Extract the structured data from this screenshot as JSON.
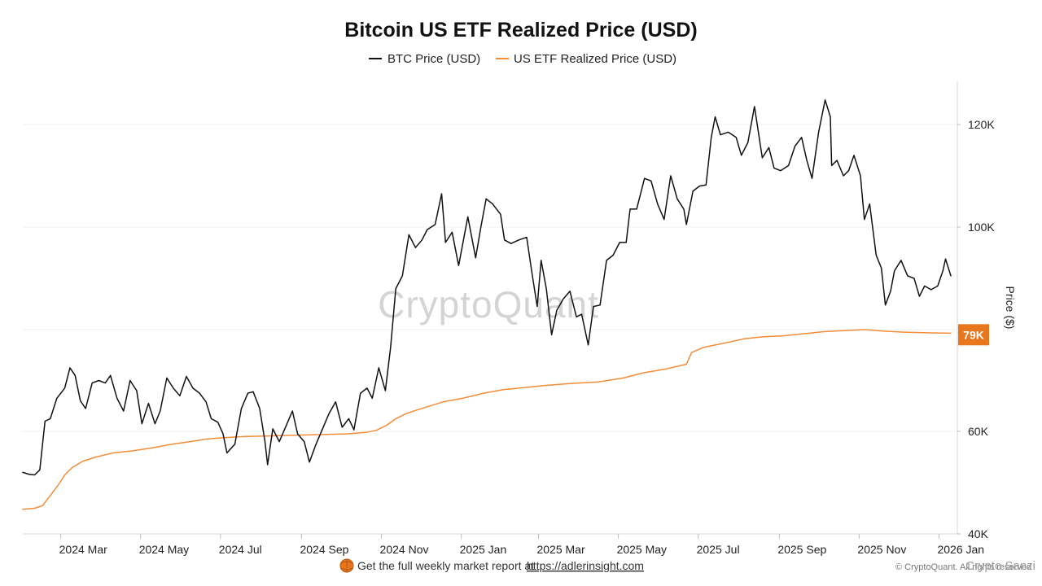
{
  "chart_data": {
    "type": "line",
    "title": "Bitcoin US ETF Realized Price (USD)",
    "xlabel": "",
    "ylabel": "Price ($)",
    "ylim": [
      40000,
      128000
    ],
    "yticks": [
      {
        "value": 40000,
        "label": "40K"
      },
      {
        "value": 60000,
        "label": "60K"
      },
      {
        "value": 100000,
        "label": "100K"
      },
      {
        "value": 120000,
        "label": "120K"
      }
    ],
    "xlim": [
      "2024-02-01",
      "2026-01-15"
    ],
    "xticks": [
      {
        "date": "2024-03-01",
        "label": "2024 Mar"
      },
      {
        "date": "2024-05-01",
        "label": "2024 May"
      },
      {
        "date": "2024-07-01",
        "label": "2024 Jul"
      },
      {
        "date": "2024-09-01",
        "label": "2024 Sep"
      },
      {
        "date": "2024-11-01",
        "label": "2024 Nov"
      },
      {
        "date": "2025-01-01",
        "label": "2025 Jan"
      },
      {
        "date": "2025-03-01",
        "label": "2025 Mar"
      },
      {
        "date": "2025-05-01",
        "label": "2025 May"
      },
      {
        "date": "2025-07-01",
        "label": "2025 Jul"
      },
      {
        "date": "2025-09-01",
        "label": "2025 Sep"
      },
      {
        "date": "2025-11-01",
        "label": "2025 Nov"
      },
      {
        "date": "2026-01-01",
        "label": "2026 Jan"
      }
    ],
    "grid": true,
    "legend_position": "top-center",
    "current_value_label": "79K",
    "current_value": 79000,
    "series": [
      {
        "name": "BTC Price (USD)",
        "color": "#111111",
        "points": [
          [
            "2024-02-01",
            52000
          ],
          [
            "2024-02-06",
            51600
          ],
          [
            "2024-02-10",
            51500
          ],
          [
            "2024-02-14",
            52500
          ],
          [
            "2024-02-18",
            62000
          ],
          [
            "2024-02-22",
            62500
          ],
          [
            "2024-02-27",
            66500
          ],
          [
            "2024-03-04",
            68500
          ],
          [
            "2024-03-08",
            72500
          ],
          [
            "2024-03-12",
            71000
          ],
          [
            "2024-03-16",
            66000
          ],
          [
            "2024-03-20",
            64500
          ],
          [
            "2024-03-25",
            69500
          ],
          [
            "2024-03-30",
            70000
          ],
          [
            "2024-04-04",
            69500
          ],
          [
            "2024-04-08",
            71000
          ],
          [
            "2024-04-13",
            66500
          ],
          [
            "2024-04-18",
            64000
          ],
          [
            "2024-04-23",
            70000
          ],
          [
            "2024-04-28",
            68000
          ],
          [
            "2024-05-02",
            61500
          ],
          [
            "2024-05-07",
            65500
          ],
          [
            "2024-05-12",
            61500
          ],
          [
            "2024-05-16",
            64000
          ],
          [
            "2024-05-21",
            70500
          ],
          [
            "2024-05-26",
            68500
          ],
          [
            "2024-05-31",
            67000
          ],
          [
            "2024-06-05",
            70800
          ],
          [
            "2024-06-10",
            68500
          ],
          [
            "2024-06-15",
            67500
          ],
          [
            "2024-06-20",
            65800
          ],
          [
            "2024-06-24",
            62500
          ],
          [
            "2024-06-29",
            61800
          ],
          [
            "2024-07-03",
            59500
          ],
          [
            "2024-07-06",
            55800
          ],
          [
            "2024-07-12",
            57500
          ],
          [
            "2024-07-17",
            64500
          ],
          [
            "2024-07-22",
            67500
          ],
          [
            "2024-07-26",
            67800
          ],
          [
            "2024-07-31",
            64500
          ],
          [
            "2024-08-04",
            58000
          ],
          [
            "2024-08-06",
            53500
          ],
          [
            "2024-08-10",
            60500
          ],
          [
            "2024-08-15",
            58000
          ],
          [
            "2024-08-20",
            61000
          ],
          [
            "2024-08-25",
            64000
          ],
          [
            "2024-08-29",
            59500
          ],
          [
            "2024-09-03",
            58000
          ],
          [
            "2024-09-07",
            54000
          ],
          [
            "2024-09-12",
            57500
          ],
          [
            "2024-09-17",
            60500
          ],
          [
            "2024-09-22",
            63500
          ],
          [
            "2024-09-27",
            65800
          ],
          [
            "2024-10-02",
            60800
          ],
          [
            "2024-10-07",
            62500
          ],
          [
            "2024-10-11",
            60300
          ],
          [
            "2024-10-16",
            67500
          ],
          [
            "2024-10-21",
            68500
          ],
          [
            "2024-10-25",
            66500
          ],
          [
            "2024-10-30",
            72500
          ],
          [
            "2024-11-04",
            68000
          ],
          [
            "2024-11-08",
            76500
          ],
          [
            "2024-11-12",
            88000
          ],
          [
            "2024-11-17",
            90500
          ],
          [
            "2024-11-22",
            98500
          ],
          [
            "2024-11-27",
            96000
          ],
          [
            "2024-12-02",
            97500
          ],
          [
            "2024-12-06",
            99500
          ],
          [
            "2024-12-12",
            100500
          ],
          [
            "2024-12-17",
            106500
          ],
          [
            "2024-12-20",
            97000
          ],
          [
            "2024-12-25",
            99000
          ],
          [
            "2024-12-30",
            92500
          ],
          [
            "2025-01-06",
            102000
          ],
          [
            "2025-01-12",
            94000
          ],
          [
            "2025-01-16",
            100000
          ],
          [
            "2025-01-20",
            105500
          ],
          [
            "2025-01-25",
            104500
          ],
          [
            "2025-01-31",
            102500
          ],
          [
            "2025-02-03",
            97500
          ],
          [
            "2025-02-08",
            96800
          ],
          [
            "2025-02-14",
            97500
          ],
          [
            "2025-02-20",
            98000
          ],
          [
            "2025-02-24",
            91000
          ],
          [
            "2025-02-28",
            84500
          ],
          [
            "2025-03-03",
            93500
          ],
          [
            "2025-03-07",
            88000
          ],
          [
            "2025-03-11",
            79000
          ],
          [
            "2025-03-15",
            83800
          ],
          [
            "2025-03-20",
            86000
          ],
          [
            "2025-03-25",
            87500
          ],
          [
            "2025-03-30",
            82500
          ],
          [
            "2025-04-03",
            83000
          ],
          [
            "2025-04-08",
            77000
          ],
          [
            "2025-04-12",
            84500
          ],
          [
            "2025-04-17",
            84800
          ],
          [
            "2025-04-22",
            93500
          ],
          [
            "2025-04-27",
            94500
          ],
          [
            "2025-05-02",
            97000
          ],
          [
            "2025-05-07",
            97000
          ],
          [
            "2025-05-10",
            103500
          ],
          [
            "2025-05-15",
            103500
          ],
          [
            "2025-05-21",
            109500
          ],
          [
            "2025-05-26",
            109000
          ],
          [
            "2025-05-31",
            104500
          ],
          [
            "2025-06-05",
            101500
          ],
          [
            "2025-06-10",
            110000
          ],
          [
            "2025-06-15",
            105500
          ],
          [
            "2025-06-20",
            103500
          ],
          [
            "2025-06-22",
            100500
          ],
          [
            "2025-06-27",
            107000
          ],
          [
            "2025-07-02",
            108000
          ],
          [
            "2025-07-07",
            108200
          ],
          [
            "2025-07-11",
            117500
          ],
          [
            "2025-07-14",
            121500
          ],
          [
            "2025-07-18",
            118000
          ],
          [
            "2025-07-24",
            118500
          ],
          [
            "2025-07-30",
            117500
          ],
          [
            "2025-08-03",
            114000
          ],
          [
            "2025-08-08",
            116500
          ],
          [
            "2025-08-13",
            123500
          ],
          [
            "2025-08-19",
            113500
          ],
          [
            "2025-08-24",
            115500
          ],
          [
            "2025-08-28",
            111500
          ],
          [
            "2025-09-02",
            111000
          ],
          [
            "2025-09-08",
            112000
          ],
          [
            "2025-09-13",
            115800
          ],
          [
            "2025-09-18",
            117500
          ],
          [
            "2025-09-22",
            113000
          ],
          [
            "2025-09-26",
            109500
          ],
          [
            "2025-10-01",
            118500
          ],
          [
            "2025-10-06",
            124800
          ],
          [
            "2025-10-10",
            121500
          ],
          [
            "2025-10-11",
            112000
          ],
          [
            "2025-10-15",
            113000
          ],
          [
            "2025-10-20",
            110000
          ],
          [
            "2025-10-24",
            111000
          ],
          [
            "2025-10-28",
            114000
          ],
          [
            "2025-11-02",
            110000
          ],
          [
            "2025-11-05",
            101500
          ],
          [
            "2025-11-09",
            104500
          ],
          [
            "2025-11-14",
            94500
          ],
          [
            "2025-11-18",
            92000
          ],
          [
            "2025-11-21",
            84800
          ],
          [
            "2025-11-25",
            87500
          ],
          [
            "2025-11-28",
            91500
          ],
          [
            "2025-12-03",
            93500
          ],
          [
            "2025-12-08",
            90500
          ],
          [
            "2025-12-13",
            90000
          ],
          [
            "2025-12-17",
            86500
          ],
          [
            "2025-12-21",
            88500
          ],
          [
            "2025-12-26",
            87800
          ],
          [
            "2025-12-31",
            88500
          ],
          [
            "2026-01-04",
            91500
          ],
          [
            "2026-01-06",
            93800
          ],
          [
            "2026-01-10",
            90500
          ]
        ]
      },
      {
        "name": "US ETF Realized Price (USD)",
        "color": "#f28c38",
        "points": [
          [
            "2024-02-01",
            44800
          ],
          [
            "2024-02-10",
            45000
          ],
          [
            "2024-02-16",
            45500
          ],
          [
            "2024-02-22",
            47500
          ],
          [
            "2024-02-28",
            49500
          ],
          [
            "2024-03-04",
            51500
          ],
          [
            "2024-03-10",
            53000
          ],
          [
            "2024-03-18",
            54200
          ],
          [
            "2024-03-28",
            55000
          ],
          [
            "2024-04-10",
            55800
          ],
          [
            "2024-04-25",
            56200
          ],
          [
            "2024-05-10",
            56800
          ],
          [
            "2024-05-25",
            57500
          ],
          [
            "2024-06-08",
            58000
          ],
          [
            "2024-06-20",
            58500
          ],
          [
            "2024-07-05",
            58800
          ],
          [
            "2024-07-20",
            59000
          ],
          [
            "2024-08-05",
            59100
          ],
          [
            "2024-08-20",
            59200
          ],
          [
            "2024-09-05",
            59300
          ],
          [
            "2024-09-20",
            59400
          ],
          [
            "2024-10-05",
            59500
          ],
          [
            "2024-10-20",
            59800
          ],
          [
            "2024-10-28",
            60200
          ],
          [
            "2024-11-05",
            61200
          ],
          [
            "2024-11-12",
            62500
          ],
          [
            "2024-11-20",
            63500
          ],
          [
            "2024-11-28",
            64200
          ],
          [
            "2024-12-08",
            65000
          ],
          [
            "2024-12-18",
            65800
          ],
          [
            "2025-01-02",
            66500
          ],
          [
            "2025-01-18",
            67500
          ],
          [
            "2025-02-02",
            68200
          ],
          [
            "2025-02-18",
            68600
          ],
          [
            "2025-03-05",
            69000
          ],
          [
            "2025-03-25",
            69400
          ],
          [
            "2025-04-15",
            69700
          ],
          [
            "2025-05-05",
            70500
          ],
          [
            "2025-05-20",
            71500
          ],
          [
            "2025-06-05",
            72200
          ],
          [
            "2025-06-22",
            73200
          ],
          [
            "2025-06-26",
            75500
          ],
          [
            "2025-07-05",
            76500
          ],
          [
            "2025-07-20",
            77300
          ],
          [
            "2025-08-05",
            78200
          ],
          [
            "2025-08-20",
            78600
          ],
          [
            "2025-09-05",
            78800
          ],
          [
            "2025-09-20",
            79200
          ],
          [
            "2025-10-05",
            79600
          ],
          [
            "2025-10-20",
            79800
          ],
          [
            "2025-11-05",
            80000
          ],
          [
            "2025-11-20",
            79700
          ],
          [
            "2025-12-05",
            79500
          ],
          [
            "2025-12-20",
            79400
          ],
          [
            "2026-01-10",
            79300
          ]
        ]
      }
    ]
  },
  "watermark": "CryptoQuant",
  "footer": {
    "prompt": "Get the full weekly market report at",
    "link_text": "https://adlerinsight.com",
    "copyright": "© CryptoQuant. All rights reserved",
    "handle": "Crypto Sanzi"
  },
  "colors": {
    "btc": "#111111",
    "realized": "#f28c38",
    "badge": "#e8761c",
    "grid": "#f0f0f0",
    "axis": "#d6d6d6"
  }
}
